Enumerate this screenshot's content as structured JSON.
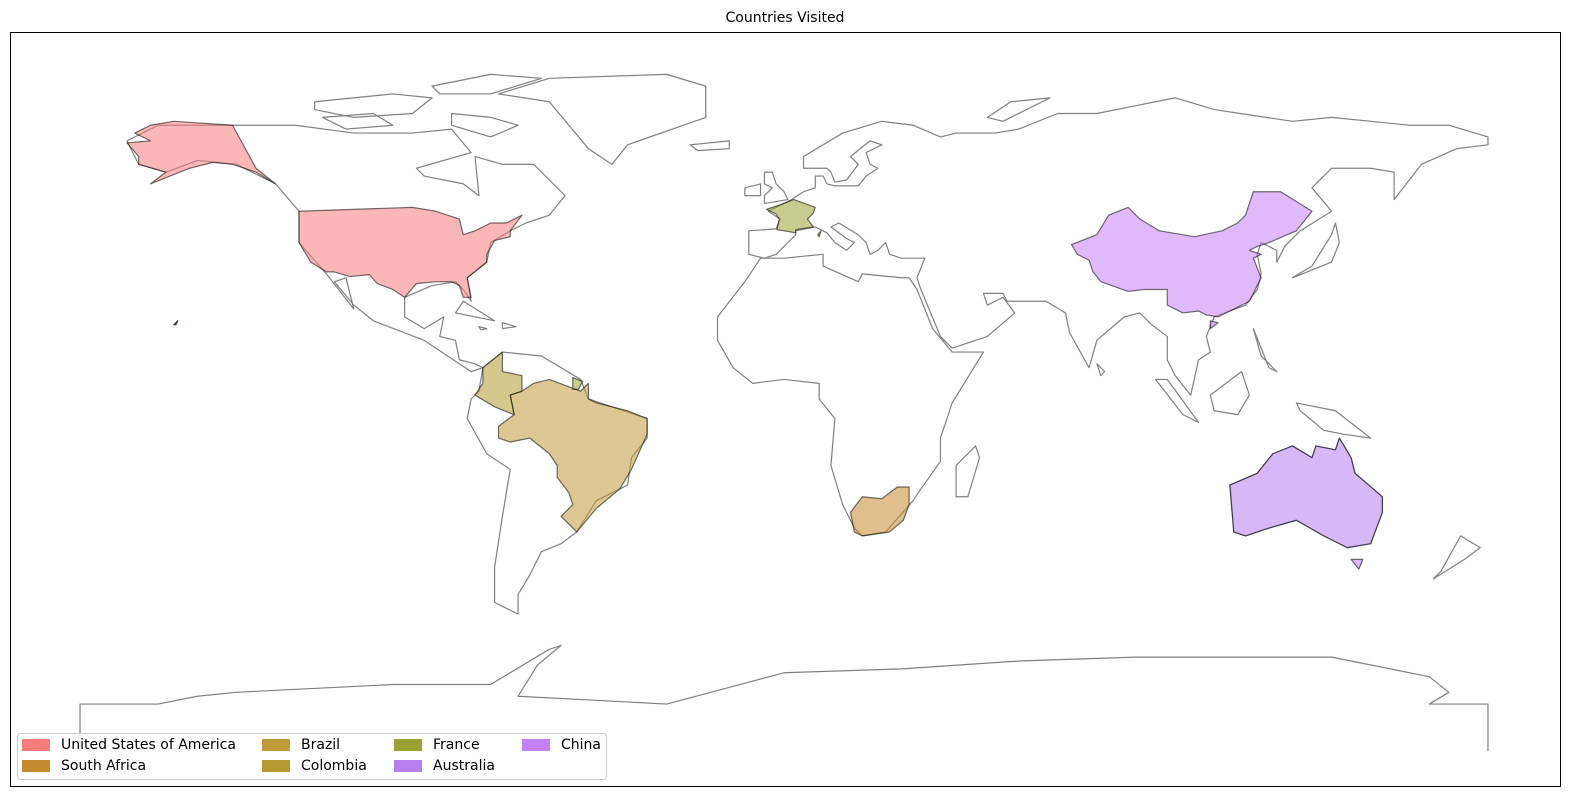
{
  "title": "Countries Visited",
  "legend": {
    "location": "lower left",
    "columns": 4
  },
  "countries": [
    {
      "name": "United States of America",
      "color": "#f87c7c"
    },
    {
      "name": "South Africa",
      "color": "#c68a2e"
    },
    {
      "name": "Brazil",
      "color": "#c19a3a"
    },
    {
      "name": "Colombia",
      "color": "#b49a30"
    },
    {
      "name": "France",
      "color": "#9aa232"
    },
    {
      "name": "Australia",
      "color": "#b77ef0"
    },
    {
      "name": "China",
      "color": "#c580f5"
    }
  ]
}
